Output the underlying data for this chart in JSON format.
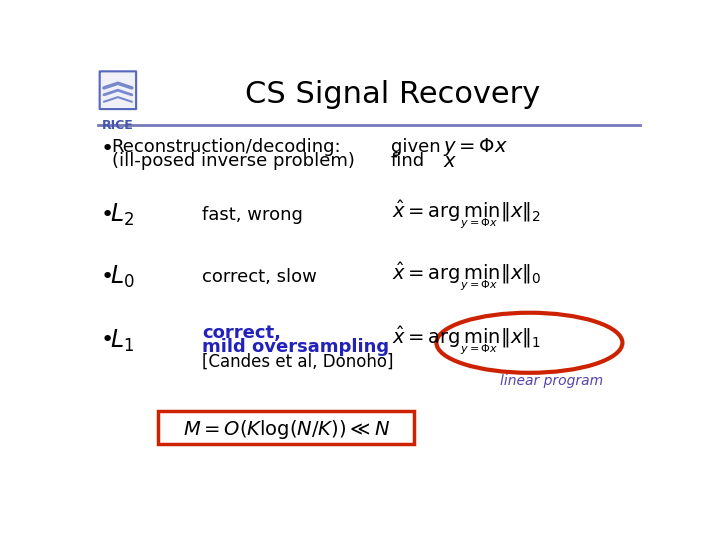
{
  "title": "CS Signal Recovery",
  "title_fontsize": 22,
  "background_color": "#ffffff",
  "title_color": "#000000",
  "line_color": "#7777bb",
  "blue_text_color": "#2222bb",
  "red_color": "#cc2200",
  "linear_program_color": "#5544aa",
  "bullet1_desc": "fast, wrong",
  "bullet2_desc": "correct, slow",
  "bullet3_desc_line1": "correct,",
  "bullet3_desc_line2": "mild oversampling",
  "bullet3_desc_line3": "[Candes et al, Donoho]",
  "linear_program_text": "linear program",
  "text_fontsize": 13,
  "formula_fontsize": 13,
  "label_fontsize": 15
}
